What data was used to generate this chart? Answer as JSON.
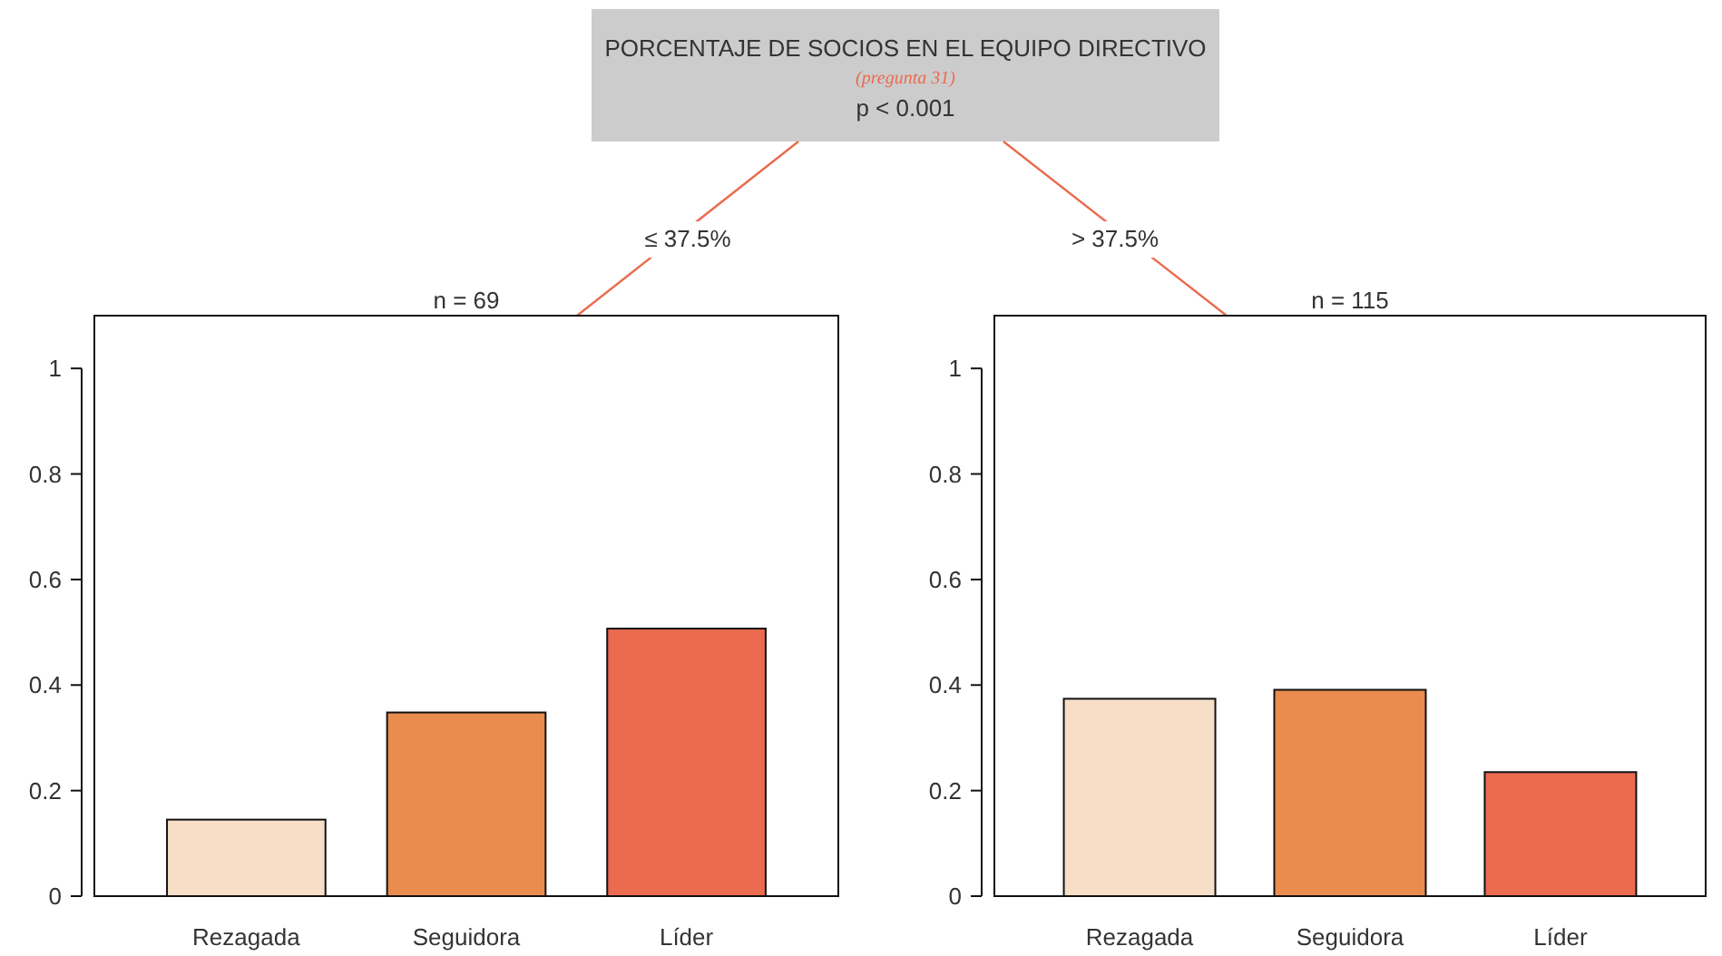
{
  "chart_data": [
    {
      "type": "other",
      "title": "PORCENTAJE DE SOCIOS EN EL EQUIPO DIRECTIVO",
      "subtitle": "(pregunta 31)",
      "annotations": [
        "p < 0.001"
      ]
    },
    {
      "type": "bar",
      "title": "n = 69",
      "annotations": [
        "≤ 37.5%"
      ],
      "categories": [
        "Rezagada",
        "Seguidora",
        "Líder"
      ],
      "values": [
        0.145,
        0.348,
        0.507
      ],
      "colors": [
        "#f7dec6",
        "#e98c4e",
        "#ea6b50"
      ],
      "ylim": [
        0,
        1.1
      ],
      "yticks": [
        0,
        0.2,
        0.4,
        0.6,
        0.8,
        1
      ]
    },
    {
      "type": "bar",
      "title": "n = 115",
      "annotations": [
        "> 37.5%"
      ],
      "categories": [
        "Rezagada",
        "Seguidora",
        "Líder"
      ],
      "values": [
        0.374,
        0.391,
        0.235
      ],
      "colors": [
        "#f7dec6",
        "#e98c4e",
        "#ea6b50"
      ],
      "ylim": [
        0,
        1.1
      ],
      "yticks": [
        0,
        0.2,
        0.4,
        0.6,
        0.8,
        1
      ]
    }
  ]
}
